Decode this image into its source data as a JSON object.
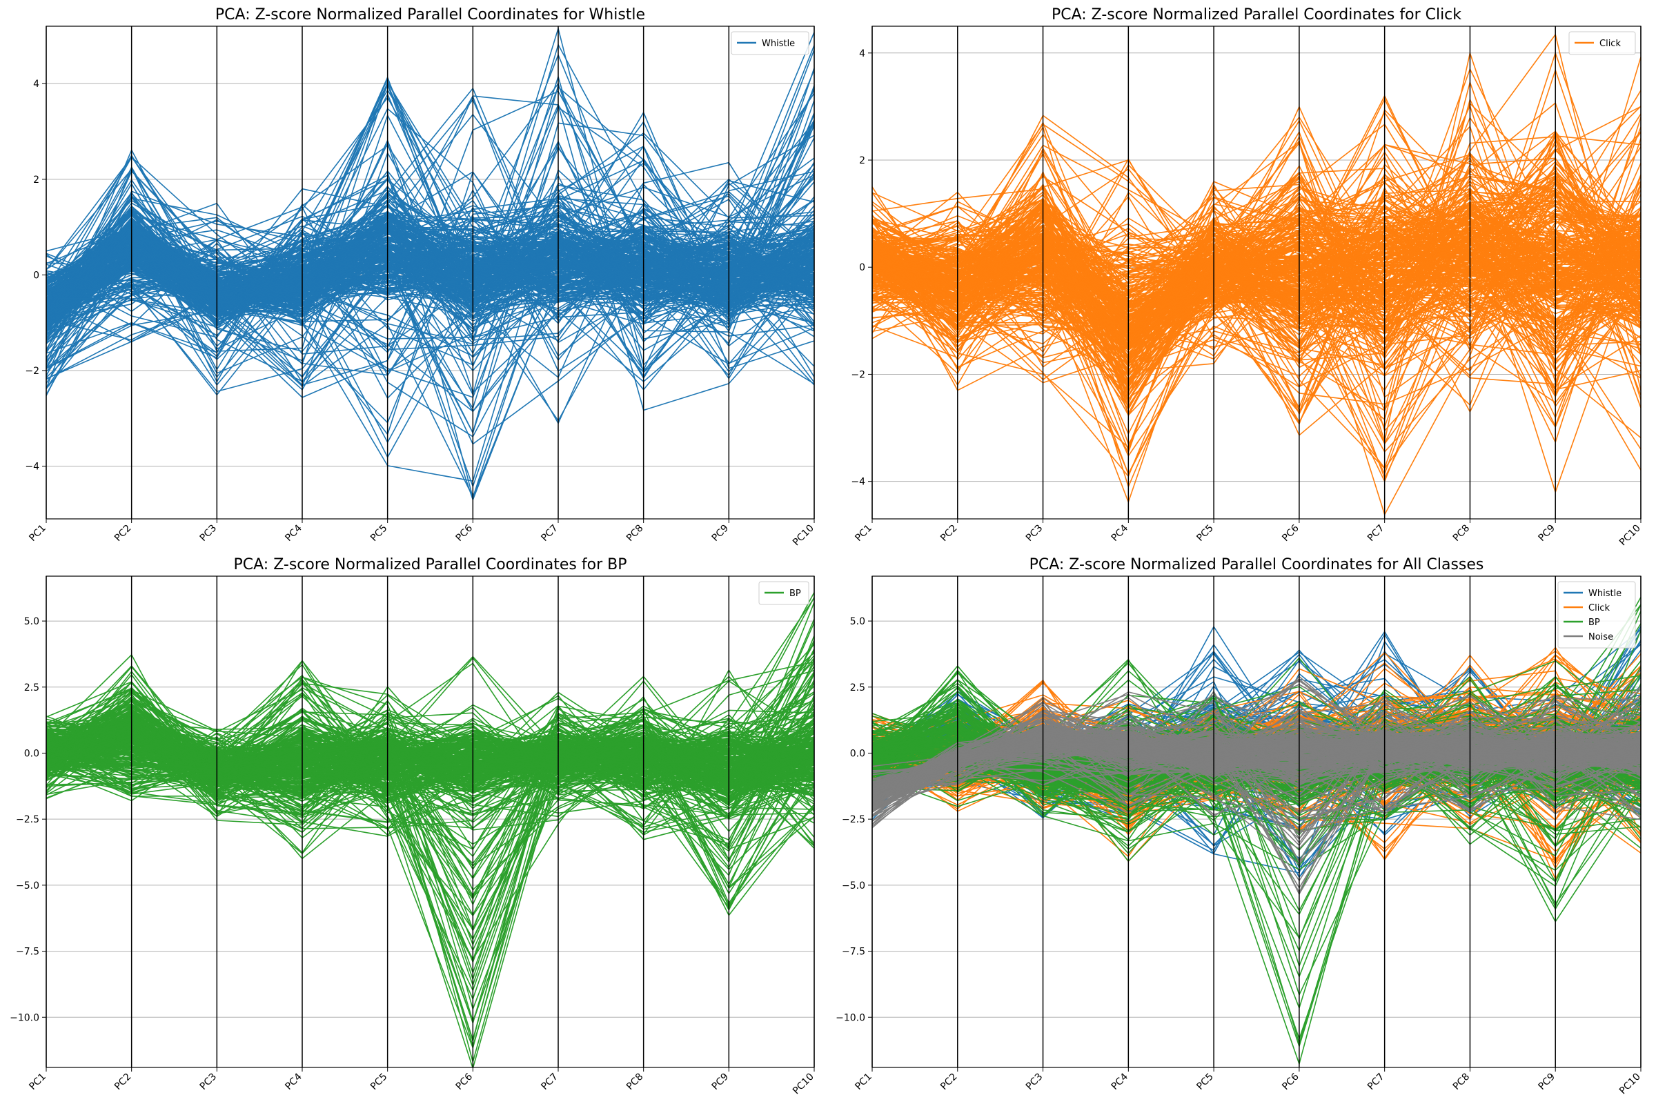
{
  "chart_data": [
    {
      "type": "parallel-coordinates",
      "title": "PCA: Z-score Normalized Parallel Coordinates for Whistle",
      "axes": [
        "PC1",
        "PC2",
        "PC3",
        "PC4",
        "PC5",
        "PC6",
        "PC7",
        "PC8",
        "PC9",
        "PC10"
      ],
      "ylim": [
        -5.1,
        5.2
      ],
      "yticks": [
        -4,
        -2,
        0,
        2,
        4
      ],
      "ytick_labels": [
        "−4",
        "−2",
        "0",
        "2",
        "4"
      ],
      "grid": true,
      "legend_position": "top-right",
      "series": [
        {
          "name": "Whistle",
          "color": "#1f77b4",
          "band_max": [
            0.5,
            2.5,
            1.2,
            1.8,
            4.1,
            3.9,
            4.6,
            3.2,
            2.0,
            4.8
          ],
          "band_min": [
            -2.5,
            -1.4,
            -2.3,
            -2.4,
            -3.5,
            -4.7,
            -3.1,
            -2.4,
            -2.1,
            -2.3
          ],
          "core_max": [
            0.2,
            1.8,
            0.6,
            1.0,
            2.2,
            1.6,
            1.8,
            1.5,
            1.2,
            1.6
          ],
          "core_min": [
            -1.6,
            -0.6,
            -1.4,
            -1.2,
            -1.1,
            -1.6,
            -1.2,
            -1.2,
            -1.3,
            -1.2
          ]
        }
      ]
    },
    {
      "type": "parallel-coordinates",
      "title": "PCA: Z-score Normalized Parallel Coordinates for Click",
      "axes": [
        "PC1",
        "PC2",
        "PC3",
        "PC4",
        "PC5",
        "PC6",
        "PC7",
        "PC8",
        "PC9",
        "PC10"
      ],
      "ylim": [
        -4.7,
        4.5
      ],
      "yticks": [
        -4,
        -2,
        0,
        2,
        4
      ],
      "ytick_labels": [
        "−4",
        "−2",
        "0",
        "2",
        "4"
      ],
      "grid": true,
      "legend_position": "top-right",
      "series": [
        {
          "name": "Click",
          "color": "#ff7f0e",
          "band_max": [
            1.5,
            1.4,
            2.7,
            2.0,
            1.6,
            2.8,
            3.2,
            3.7,
            4.0,
            3.3
          ],
          "band_min": [
            -1.2,
            -2.2,
            -2.1,
            -4.1,
            -1.8,
            -2.9,
            -4.0,
            -2.7,
            -4.2,
            -3.4
          ],
          "core_max": [
            1.0,
            1.1,
            2.2,
            1.0,
            1.2,
            2.0,
            2.3,
            2.4,
            2.8,
            1.6
          ],
          "core_min": [
            -0.8,
            -1.8,
            -1.5,
            -3.0,
            -1.2,
            -2.2,
            -2.2,
            -1.6,
            -2.6,
            -1.6
          ]
        }
      ]
    },
    {
      "type": "parallel-coordinates",
      "title": "PCA: Z-score Normalized Parallel Coordinates for BP",
      "axes": [
        "PC1",
        "PC2",
        "PC3",
        "PC4",
        "PC5",
        "PC6",
        "PC7",
        "PC8",
        "PC9",
        "PC10"
      ],
      "ylim": [
        -11.9,
        6.7
      ],
      "yticks": [
        -10.0,
        -7.5,
        -5.0,
        -2.5,
        0.0,
        2.5,
        5.0
      ],
      "ytick_labels": [
        "−10.0",
        "−7.5",
        "−5.0",
        "−2.5",
        "0.0",
        "2.5",
        "5.0"
      ],
      "grid": true,
      "legend_position": "top-right",
      "series": [
        {
          "name": "BP",
          "color": "#2ca02c",
          "band_max": [
            1.4,
            3.3,
            0.9,
            3.5,
            2.2,
            3.6,
            2.3,
            2.9,
            2.9,
            5.9
          ],
          "band_min": [
            -1.7,
            -1.8,
            -2.4,
            -3.8,
            -3.1,
            -11.1,
            -2.4,
            -3.1,
            -5.9,
            -3.6
          ],
          "core_max": [
            1.2,
            2.9,
            0.6,
            1.8,
            1.6,
            1.6,
            1.4,
            1.8,
            1.8,
            2.0
          ],
          "core_min": [
            -1.2,
            -1.6,
            -2.0,
            -2.6,
            -2.2,
            -2.4,
            -1.8,
            -2.2,
            -2.8,
            -2.4
          ]
        }
      ]
    },
    {
      "type": "parallel-coordinates",
      "title": "PCA: Z-score Normalized Parallel Coordinates for All Classes",
      "axes": [
        "PC1",
        "PC2",
        "PC3",
        "PC4",
        "PC5",
        "PC6",
        "PC7",
        "PC8",
        "PC9",
        "PC10"
      ],
      "ylim": [
        -11.9,
        6.7
      ],
      "yticks": [
        -10.0,
        -7.5,
        -5.0,
        -2.5,
        0.0,
        2.5,
        5.0
      ],
      "ytick_labels": [
        "−10.0",
        "−7.5",
        "−5.0",
        "−2.5",
        "0.0",
        "2.5",
        "5.0"
      ],
      "grid": true,
      "legend_position": "top-right",
      "series": [
        {
          "name": "Whistle",
          "color": "#1f77b4",
          "band_max": [
            0.5,
            2.5,
            1.2,
            1.8,
            4.1,
            3.9,
            4.6,
            3.2,
            2.0,
            4.8
          ],
          "band_min": [
            -2.5,
            -1.4,
            -2.3,
            -2.4,
            -3.5,
            -4.7,
            -3.1,
            -2.4,
            -2.1,
            -2.3
          ],
          "core_max": [
            0.2,
            1.8,
            0.6,
            1.0,
            2.2,
            1.6,
            1.8,
            1.5,
            1.2,
            1.6
          ],
          "core_min": [
            -1.6,
            -0.6,
            -1.4,
            -1.2,
            -1.1,
            -1.6,
            -1.2,
            -1.2,
            -1.3,
            -1.2
          ]
        },
        {
          "name": "Click",
          "color": "#ff7f0e",
          "band_max": [
            1.5,
            1.4,
            2.7,
            2.0,
            1.6,
            2.8,
            3.2,
            3.7,
            4.0,
            3.3
          ],
          "band_min": [
            -1.2,
            -2.2,
            -2.1,
            -4.1,
            -1.8,
            -2.9,
            -4.0,
            -2.7,
            -4.2,
            -3.4
          ],
          "core_max": [
            1.0,
            1.1,
            2.2,
            1.0,
            1.2,
            2.0,
            2.3,
            2.4,
            2.8,
            1.6
          ],
          "core_min": [
            -0.8,
            -1.8,
            -1.5,
            -3.0,
            -1.2,
            -2.2,
            -2.2,
            -1.6,
            -2.6,
            -1.6
          ]
        },
        {
          "name": "BP",
          "color": "#2ca02c",
          "band_max": [
            1.4,
            3.3,
            0.9,
            3.5,
            2.2,
            3.6,
            2.3,
            2.9,
            2.9,
            5.9
          ],
          "band_min": [
            -1.7,
            -1.8,
            -2.4,
            -3.8,
            -3.1,
            -11.1,
            -2.4,
            -3.1,
            -5.9,
            -3.6
          ],
          "core_max": [
            1.2,
            2.9,
            0.6,
            1.8,
            1.6,
            1.6,
            1.4,
            1.8,
            1.8,
            2.0
          ],
          "core_min": [
            -1.2,
            -1.6,
            -2.0,
            -2.6,
            -2.2,
            -2.4,
            -1.8,
            -2.2,
            -2.8,
            -2.4
          ]
        },
        {
          "name": "Noise",
          "color": "#7f7f7f",
          "band_max": [
            -0.5,
            0.4,
            1.9,
            2.1,
            2.2,
            2.9,
            2.0,
            2.2,
            2.2,
            2.5
          ],
          "band_min": [
            -2.7,
            -1.2,
            -1.2,
            -2.0,
            -2.4,
            -5.1,
            -2.3,
            -2.2,
            -2.3,
            -2.4
          ],
          "core_max": [
            -0.8,
            0.2,
            1.5,
            1.2,
            1.1,
            1.8,
            1.3,
            1.3,
            1.3,
            1.2
          ],
          "core_min": [
            -2.4,
            -0.6,
            -0.4,
            -0.9,
            -1.2,
            -1.6,
            -0.9,
            -1.0,
            -1.2,
            -1.0
          ]
        }
      ]
    }
  ]
}
